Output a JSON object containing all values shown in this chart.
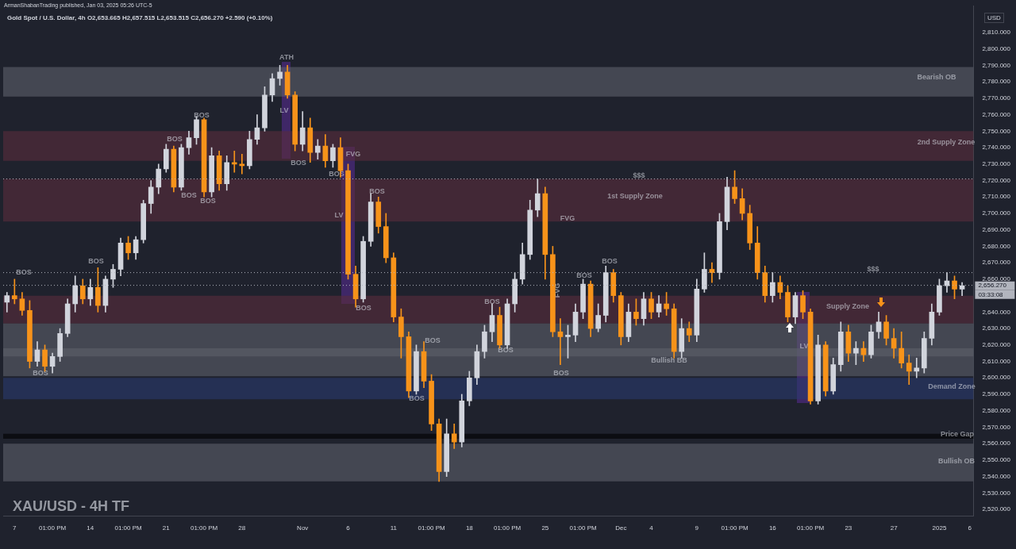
{
  "chart_data": {
    "type": "candlestick",
    "title": "XAU/USD - 4H TF",
    "subtitle": "Gold Spot / U.S. Dollar, 4h O2,653.665 H2,657.515 L2,653.515 C2,656.270 +2.590 (+0.10%)",
    "ylabel": "USD",
    "categories": [
      null,
      "7",
      null,
      null,
      null,
      null,
      "01:00 PM",
      null,
      null,
      null,
      null,
      "14",
      null,
      null,
      null,
      null,
      "01:00 PM",
      null,
      null,
      null,
      null,
      "21",
      null,
      null,
      null,
      null,
      "01:00 PM",
      null,
      null,
      null,
      null,
      "28",
      null,
      null,
      null,
      null,
      null,
      null,
      null,
      "Nov",
      null,
      null,
      null,
      null,
      null,
      "6",
      null,
      null,
      null,
      null,
      null,
      "11",
      null,
      null,
      null,
      null,
      "01:00 PM",
      null,
      null,
      null,
      null,
      "18",
      null,
      null,
      null,
      null,
      "01:00 PM",
      null,
      null,
      null,
      null,
      "25",
      null,
      null,
      null,
      null,
      "01:00 PM",
      null,
      null,
      null,
      null,
      "Dec",
      null,
      null,
      null,
      "4",
      null,
      null,
      null,
      null,
      null,
      "9",
      null,
      null,
      null,
      null,
      "01:00 PM",
      null,
      null,
      null,
      null,
      "16",
      null,
      null,
      null,
      null,
      "01:00 PM",
      null,
      null,
      null,
      null,
      "23",
      null,
      null,
      null,
      null,
      null,
      "27",
      null,
      null,
      null,
      null,
      null,
      "2025",
      null,
      null,
      null,
      "6"
    ],
    "ohlc": [
      [
        2646,
        2652,
        2640,
        2650
      ],
      [
        2650,
        2660,
        2645,
        2648
      ],
      [
        2648,
        2652,
        2638,
        2641
      ],
      [
        2641,
        2647,
        2606,
        2610
      ],
      [
        2610,
        2622,
        2607,
        2617
      ],
      [
        2617,
        2620,
        2604,
        2607
      ],
      [
        2607,
        2615,
        2603,
        2613
      ],
      [
        2613,
        2630,
        2610,
        2627
      ],
      [
        2627,
        2648,
        2625,
        2645
      ],
      [
        2645,
        2662,
        2640,
        2656
      ],
      [
        2656,
        2660,
        2645,
        2648
      ],
      [
        2648,
        2660,
        2644,
        2655
      ],
      [
        2655,
        2667,
        2640,
        2644
      ],
      [
        2644,
        2662,
        2640,
        2660
      ],
      [
        2660,
        2669,
        2655,
        2666
      ],
      [
        2666,
        2685,
        2662,
        2682
      ],
      [
        2682,
        2686,
        2672,
        2676
      ],
      [
        2676,
        2686,
        2672,
        2684
      ],
      [
        2684,
        2708,
        2682,
        2706
      ],
      [
        2706,
        2720,
        2700,
        2716
      ],
      [
        2716,
        2730,
        2712,
        2727
      ],
      [
        2727,
        2742,
        2725,
        2739
      ],
      [
        2739,
        2741,
        2713,
        2716
      ],
      [
        2716,
        2742,
        2714,
        2740
      ],
      [
        2740,
        2750,
        2736,
        2746
      ],
      [
        2746,
        2759,
        2742,
        2757
      ],
      [
        2757,
        2758,
        2710,
        2713
      ],
      [
        2713,
        2740,
        2710,
        2735
      ],
      [
        2735,
        2738,
        2714,
        2718
      ],
      [
        2718,
        2735,
        2714,
        2731
      ],
      [
        2731,
        2738,
        2725,
        2730
      ],
      [
        2730,
        2736,
        2724,
        2729
      ],
      [
        2729,
        2750,
        2727,
        2745
      ],
      [
        2745,
        2760,
        2742,
        2752
      ],
      [
        2752,
        2777,
        2750,
        2772
      ],
      [
        2772,
        2785,
        2768,
        2782
      ],
      [
        2782,
        2790,
        2778,
        2786
      ],
      [
        2786,
        2790,
        2770,
        2772
      ],
      [
        2772,
        2774,
        2738,
        2742
      ],
      [
        2742,
        2762,
        2738,
        2752
      ],
      [
        2752,
        2758,
        2731,
        2737
      ],
      [
        2737,
        2745,
        2733,
        2741
      ],
      [
        2741,
        2748,
        2728,
        2732
      ],
      [
        2732,
        2742,
        2728,
        2740
      ],
      [
        2740,
        2746,
        2722,
        2726
      ],
      [
        2726,
        2730,
        2660,
        2663
      ],
      [
        2663,
        2668,
        2643,
        2648
      ],
      [
        2648,
        2686,
        2646,
        2683
      ],
      [
        2683,
        2712,
        2680,
        2707
      ],
      [
        2707,
        2710,
        2688,
        2692
      ],
      [
        2692,
        2700,
        2670,
        2673
      ],
      [
        2673,
        2676,
        2634,
        2637
      ],
      [
        2637,
        2642,
        2612,
        2625
      ],
      [
        2625,
        2628,
        2588,
        2592
      ],
      [
        2592,
        2620,
        2590,
        2616
      ],
      [
        2616,
        2622,
        2594,
        2598
      ],
      [
        2598,
        2602,
        2568,
        2572
      ],
      [
        2572,
        2575,
        2537,
        2543
      ],
      [
        2543,
        2575,
        2540,
        2566
      ],
      [
        2566,
        2572,
        2557,
        2561
      ],
      [
        2561,
        2590,
        2558,
        2586
      ],
      [
        2586,
        2604,
        2583,
        2600
      ],
      [
        2600,
        2620,
        2596,
        2616
      ],
      [
        2616,
        2632,
        2612,
        2628
      ],
      [
        2628,
        2645,
        2622,
        2638
      ],
      [
        2638,
        2643,
        2618,
        2620
      ],
      [
        2620,
        2648,
        2618,
        2645
      ],
      [
        2645,
        2664,
        2640,
        2660
      ],
      [
        2660,
        2682,
        2657,
        2675
      ],
      [
        2675,
        2708,
        2672,
        2702
      ],
      [
        2702,
        2721,
        2698,
        2712
      ],
      [
        2712,
        2716,
        2660,
        2675
      ],
      [
        2675,
        2680,
        2625,
        2628
      ],
      [
        2628,
        2636,
        2608,
        2625
      ],
      [
        2625,
        2632,
        2612,
        2626
      ],
      [
        2626,
        2645,
        2622,
        2640
      ],
      [
        2640,
        2660,
        2636,
        2657
      ],
      [
        2657,
        2659,
        2625,
        2630
      ],
      [
        2630,
        2645,
        2628,
        2638
      ],
      [
        2638,
        2668,
        2634,
        2664
      ],
      [
        2664,
        2666,
        2646,
        2650
      ],
      [
        2650,
        2652,
        2620,
        2625
      ],
      [
        2625,
        2645,
        2622,
        2640
      ],
      [
        2640,
        2648,
        2632,
        2636
      ],
      [
        2636,
        2652,
        2632,
        2648
      ],
      [
        2648,
        2652,
        2636,
        2640
      ],
      [
        2640,
        2650,
        2637,
        2645
      ],
      [
        2645,
        2652,
        2638,
        2642
      ],
      [
        2642,
        2645,
        2612,
        2616
      ],
      [
        2616,
        2636,
        2612,
        2630
      ],
      [
        2630,
        2634,
        2622,
        2626
      ],
      [
        2626,
        2660,
        2622,
        2654
      ],
      [
        2654,
        2676,
        2652,
        2666
      ],
      [
        2666,
        2670,
        2658,
        2664
      ],
      [
        2664,
        2700,
        2660,
        2695
      ],
      [
        2695,
        2722,
        2690,
        2716
      ],
      [
        2716,
        2726,
        2706,
        2709
      ],
      [
        2709,
        2715,
        2696,
        2700
      ],
      [
        2700,
        2705,
        2678,
        2682
      ],
      [
        2682,
        2692,
        2660,
        2664
      ],
      [
        2664,
        2668,
        2646,
        2650
      ],
      [
        2650,
        2664,
        2646,
        2658
      ],
      [
        2658,
        2662,
        2648,
        2652
      ],
      [
        2652,
        2656,
        2634,
        2637
      ],
      [
        2637,
        2652,
        2633,
        2650
      ],
      [
        2650,
        2653,
        2636,
        2640
      ],
      [
        2640,
        2642,
        2584,
        2586
      ],
      [
        2586,
        2626,
        2584,
        2620
      ],
      [
        2620,
        2622,
        2589,
        2592
      ],
      [
        2592,
        2612,
        2590,
        2608
      ],
      [
        2608,
        2634,
        2604,
        2628
      ],
      [
        2628,
        2632,
        2610,
        2615
      ],
      [
        2615,
        2622,
        2608,
        2618
      ],
      [
        2618,
        2622,
        2610,
        2614
      ],
      [
        2614,
        2632,
        2612,
        2628
      ],
      [
        2628,
        2640,
        2624,
        2634
      ],
      [
        2634,
        2638,
        2620,
        2624
      ],
      [
        2624,
        2630,
        2612,
        2618
      ],
      [
        2618,
        2628,
        2606,
        2609
      ],
      [
        2609,
        2614,
        2596,
        2604
      ],
      [
        2604,
        2612,
        2600,
        2606
      ],
      [
        2606,
        2628,
        2603,
        2624
      ],
      [
        2624,
        2645,
        2620,
        2640
      ],
      [
        2640,
        2660,
        2638,
        2656
      ],
      [
        2656,
        2664,
        2652,
        2659
      ],
      [
        2659,
        2662,
        2648,
        2654
      ],
      [
        2654,
        2658,
        2650,
        2656
      ],
      null
    ],
    "ylim": [
      2516,
      2826
    ],
    "yticks": [
      {
        "value": 2520,
        "label": "2,520.000"
      },
      {
        "value": 2530,
        "label": "2,530.000"
      },
      {
        "value": 2540,
        "label": "2,540.000"
      },
      {
        "value": 2550,
        "label": "2,550.000"
      },
      {
        "value": 2560,
        "label": "2,560.000"
      },
      {
        "value": 2570,
        "label": "2,570.000"
      },
      {
        "value": 2580,
        "label": "2,580.000"
      },
      {
        "value": 2590,
        "label": "2,590.000"
      },
      {
        "value": 2600,
        "label": "2,600.000"
      },
      {
        "value": 2610,
        "label": "2,610.000"
      },
      {
        "value": 2620,
        "label": "2,620.000"
      },
      {
        "value": 2630,
        "label": "2,630.000"
      },
      {
        "value": 2640,
        "label": "2,640.000"
      },
      {
        "value": 2660,
        "label": "2,660.000"
      },
      {
        "value": 2670,
        "label": "2,670.000"
      },
      {
        "value": 2680,
        "label": "2,680.000"
      },
      {
        "value": 2690,
        "label": "2,690.000"
      },
      {
        "value": 2700,
        "label": "2,700.000"
      },
      {
        "value": 2710,
        "label": "2,710.000"
      },
      {
        "value": 2720,
        "label": "2,720.000"
      },
      {
        "value": 2730,
        "label": "2,730.000"
      },
      {
        "value": 2740,
        "label": "2,740.000"
      },
      {
        "value": 2750,
        "label": "2,750.000"
      },
      {
        "value": 2760,
        "label": "2,760.000"
      },
      {
        "value": 2770,
        "label": "2,770.000"
      },
      {
        "value": 2780,
        "label": "2,780.000"
      },
      {
        "value": 2790,
        "label": "2,790.000"
      },
      {
        "value": 2800,
        "label": "2,800.000"
      },
      {
        "value": 2810,
        "label": "2,810.000"
      }
    ],
    "bands": [
      {
        "axis": "y",
        "from": 2771,
        "to": 2789,
        "color": "#5d606b"
      },
      {
        "axis": "y",
        "from": 2732,
        "to": 2750,
        "color": "#5a2d3c"
      },
      {
        "axis": "y",
        "from": 2695,
        "to": 2721,
        "color": "#5a2d3c"
      },
      {
        "axis": "y",
        "from": 2633,
        "to": 2650,
        "color": "#5a2d3c"
      },
      {
        "axis": "y",
        "from": 2613,
        "to": 2633,
        "color": "#5d606b"
      },
      {
        "axis": "y",
        "from": 2601,
        "to": 2618,
        "color": "#5d606b"
      },
      {
        "axis": "y",
        "from": 2587,
        "to": 2600,
        "color": "#2a3a6e"
      },
      {
        "axis": "y",
        "from": 2563,
        "to": 2566,
        "color": "#000000"
      },
      {
        "axis": "y",
        "from": 2537,
        "to": 2560,
        "color": "#5d606b"
      }
    ],
    "ref_lines": [
      {
        "axis": "y",
        "value": 2721,
        "color": "#b2b5be",
        "line_style": "dotted"
      },
      {
        "axis": "y",
        "value": 2664,
        "color": "#b2b5be",
        "line_style": "dotted"
      },
      {
        "axis": "y",
        "value": 2656.27,
        "label": "2,656.270",
        "color": "#b2b5be",
        "line_style": "dotted"
      }
    ],
    "annotations": [
      "ArmanShabanTrading published, Jan 03, 2025 05:26 UTC-5",
      "03:33:08",
      "Bearish OB",
      "2nd Supply Zone",
      "1st Supply Zone",
      "Bullish BB",
      "Supply Zone",
      "Demand Zone",
      "Price Gap",
      "Bullish OB",
      "ATH",
      "LV",
      "LV",
      "LV",
      "FVG",
      "FVG",
      "FVG",
      "$$$",
      "$$$",
      "BOS",
      "BOS",
      "BOS",
      "BOS",
      "BOS",
      "BOS",
      "BOS",
      "BOS",
      "BOS",
      "BOS",
      "BOS",
      "BOS",
      "BOS",
      "BOS",
      "BOS",
      "BOS",
      "BOS",
      "BOS"
    ],
    "grid": false,
    "legend": false
  }
}
